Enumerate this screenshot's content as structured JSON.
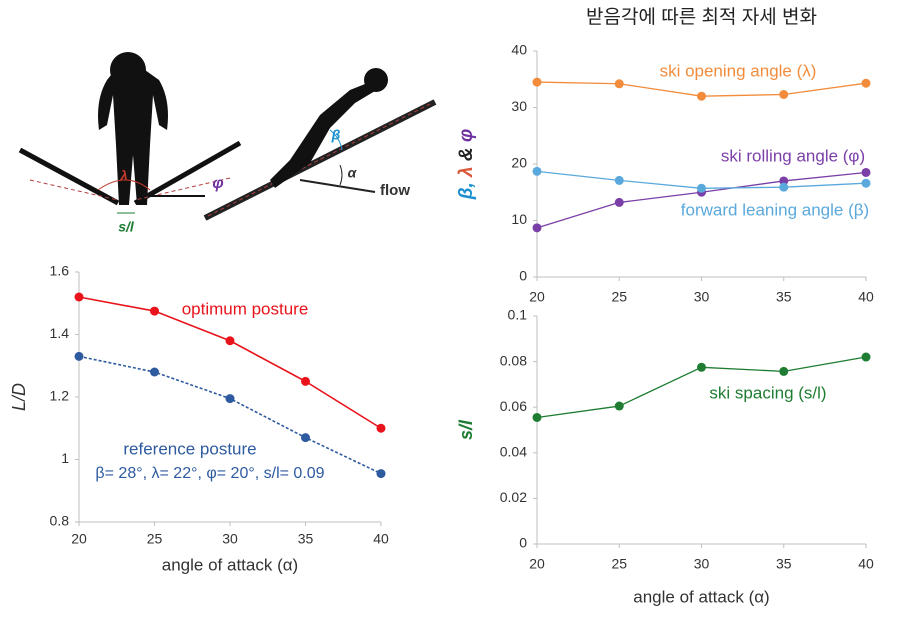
{
  "figure_labels": {
    "lambda": "λ",
    "phi": "φ",
    "spacing": "s/l",
    "beta": "β",
    "alpha": "α",
    "flow": "flow"
  },
  "chart_data": [
    {
      "type": "line",
      "x_label": "angle of attack (α)",
      "y_label": "L/D",
      "x": [
        20,
        25,
        30,
        35,
        40
      ],
      "xlim": [
        20,
        40
      ],
      "xticks": [
        20,
        25,
        30,
        35,
        40
      ],
      "ylim": [
        0.8,
        1.6
      ],
      "yticks": [
        0.8,
        1,
        1.2,
        1.4,
        1.6
      ],
      "series": [
        {
          "name": "optimum posture",
          "color": "#e8131b",
          "line_style": "solid",
          "values": [
            1.52,
            1.475,
            1.38,
            1.25,
            1.1
          ]
        },
        {
          "name": "reference posture",
          "color": "#2e5aa0",
          "line_style": "dashed",
          "values": [
            1.33,
            1.28,
            1.195,
            1.07,
            0.955
          ]
        }
      ],
      "annotations": [
        "β= 28°, λ= 22°, φ= 20°, s/l= 0.09"
      ]
    },
    {
      "type": "line",
      "title": "받음각에 따른 최적 자세 변화",
      "y_label_parts": [
        {
          "text": "β",
          "color": "#1b8fd0"
        },
        {
          "text": ", ",
          "color": "#1b8fd0"
        },
        {
          "text": "λ",
          "color": "#d9573a"
        },
        {
          "text": " & ",
          "color": "#222222"
        },
        {
          "text": "φ",
          "color": "#7030a0"
        }
      ],
      "x": [
        20,
        25,
        30,
        35,
        40
      ],
      "xlim": [
        20,
        40
      ],
      "xticks": [
        20,
        25,
        30,
        35,
        40
      ],
      "ylim": [
        0,
        40
      ],
      "yticks": [
        0,
        10,
        20,
        30,
        40
      ],
      "series": [
        {
          "name": "ski opening angle (λ)",
          "color": "#f28c3c",
          "line_style": "solid",
          "values": [
            34.5,
            34.2,
            32.0,
            32.3,
            34.3
          ]
        },
        {
          "name": "ski rolling angle (φ)",
          "color": "#7b3fa8",
          "line_style": "solid",
          "values": [
            8.7,
            13.2,
            15.0,
            17.0,
            18.5
          ]
        },
        {
          "name": "forward leaning angle (β)",
          "color": "#5aa9dc",
          "line_style": "solid",
          "values": [
            18.7,
            17.1,
            15.7,
            15.9,
            16.6
          ]
        }
      ]
    },
    {
      "type": "line",
      "x_label": "angle of attack (α)",
      "y_label": "s/l",
      "x": [
        20,
        25,
        30,
        35,
        40
      ],
      "xlim": [
        20,
        40
      ],
      "xticks": [
        20,
        25,
        30,
        35,
        40
      ],
      "ylim": [
        0,
        0.1
      ],
      "yticks": [
        0,
        0.02,
        0.04,
        0.06,
        0.08,
        0.1
      ],
      "series": [
        {
          "name": "ski spacing (s/l)",
          "color": "#1e7d32",
          "line_style": "solid",
          "values": [
            0.0555,
            0.0605,
            0.0775,
            0.0757,
            0.082
          ]
        }
      ]
    }
  ]
}
